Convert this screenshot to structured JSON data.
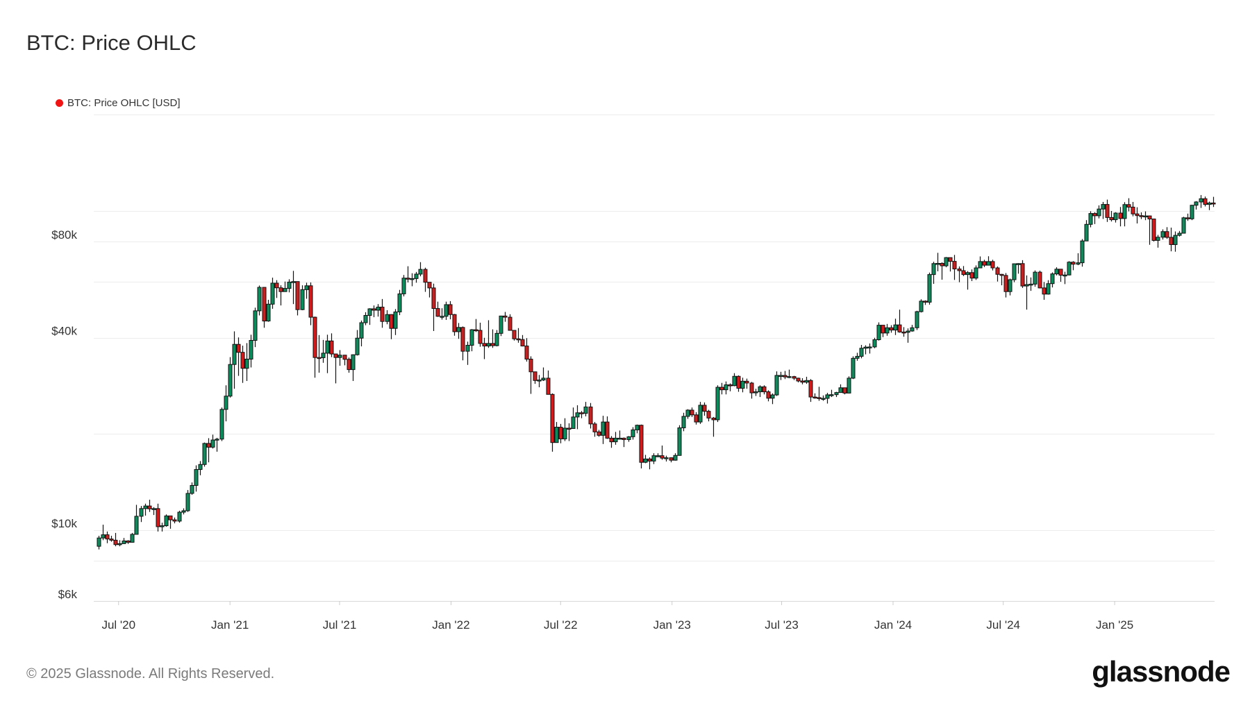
{
  "title": "BTC: Price OHLC",
  "legend": {
    "label": "BTC: Price OHLC [USD]",
    "color": "#f01414"
  },
  "footer": "© 2025 Glassnode. All Rights Reserved.",
  "logo": "glassnode",
  "chart_data": {
    "type": "candlestick",
    "title": "BTC: Price OHLC",
    "series_name": "BTC: Price OHLC [USD]",
    "y_scale": "log",
    "ylim": [
      6000,
      200000
    ],
    "y_ticks": [
      {
        "value": 6000,
        "label": "$6k"
      },
      {
        "value": 10000,
        "label": "$10k"
      },
      {
        "value": 40000,
        "label": "$40k"
      },
      {
        "value": 80000,
        "label": "$80k"
      }
    ],
    "y_gridlines": [
      6000,
      8000,
      10000,
      20000,
      40000,
      60000,
      80000,
      100000,
      200000
    ],
    "xlim": [
      "2020-05-21",
      "2025-06-15"
    ],
    "x_ticks": [
      {
        "date": "2020-07-01",
        "label": "Jul '20"
      },
      {
        "date": "2021-01-01",
        "label": "Jan '21"
      },
      {
        "date": "2021-07-01",
        "label": "Jul '21"
      },
      {
        "date": "2022-01-01",
        "label": "Jan '22"
      },
      {
        "date": "2022-07-01",
        "label": "Jul '22"
      },
      {
        "date": "2023-01-01",
        "label": "Jan '23"
      },
      {
        "date": "2023-07-01",
        "label": "Jul '23"
      },
      {
        "date": "2024-01-01",
        "label": "Jan '24"
      },
      {
        "date": "2024-07-01",
        "label": "Jul '24"
      },
      {
        "date": "2025-01-01",
        "label": "Jan '25"
      }
    ],
    "grid": true,
    "legend_position": "top-left",
    "up_color": "#0c8c5c",
    "down_color": "#d01c1c",
    "interval": "1w",
    "first_week": "2020-05-25",
    "first_open": 8900,
    "close": [
      9450,
      9670,
      9380,
      9300,
      9010,
      9070,
      9250,
      9160,
      9700,
      11050,
      11680,
      11900,
      11660,
      11680,
      10250,
      10320,
      11080,
      10770,
      10670,
      11380,
      11500,
      13030,
      13800,
      15480,
      16050,
      18680,
      18180,
      19150,
      19270,
      23870,
      26270,
      33000,
      38150,
      36020,
      32100,
      34300,
      39260,
      48580,
      57540,
      45140,
      50970,
      59300,
      57350,
      55800,
      57100,
      59770,
      60000,
      49000,
      56600,
      58200,
      46400,
      34700,
      34650,
      35800,
      39100,
      35600,
      34700,
      35300,
      34250,
      31800,
      35400,
      39900,
      44600,
      47000,
      49300,
      48800,
      49900,
      45000,
      47300,
      42800,
      48200,
      54900,
      61500,
      61300,
      61300,
      63300,
      65500,
      59700,
      57300,
      49400,
      46700,
      46700,
      50800,
      47300,
      41800,
      43100,
      36300,
      37900,
      42400,
      42200,
      38400,
      37700,
      38400,
      37800,
      41300,
      46800,
      46400,
      42200,
      39700,
      39500,
      37700,
      34300,
      31300,
      29400,
      29500,
      29900,
      26600,
      18800,
      21000,
      19300,
      20850,
      20800,
      22600,
      23300,
      23200,
      24300,
      21500,
      20300,
      19800,
      21800,
      19400,
      18900,
      19400,
      19400,
      19200,
      19600,
      20600,
      21300,
      16300,
      16700,
      16450,
      17100,
      17100,
      16800,
      16850,
      16550,
      17130,
      20900,
      22700,
      23750,
      22950,
      21800,
      24600,
      23550,
      22430,
      22150,
      28000,
      27500,
      28500,
      28330,
      30300,
      27800,
      29250,
      28870,
      26900,
      27100,
      28100,
      27100,
      25880,
      26500,
      30500,
      30500,
      30170,
      30250,
      29900,
      29300,
      29050,
      29400,
      26100,
      26000,
      25800,
      25850,
      26520,
      26550,
      26960,
      27900,
      26850,
      29900,
      34500,
      35000,
      37100,
      37400,
      37450,
      39450,
      43800,
      41400,
      43000,
      42300,
      43900,
      41700,
      41600,
      42000,
      43000,
      48300,
      52100,
      51700,
      63100,
      68300,
      68400,
      67200,
      71300,
      69400,
      65700,
      64900,
      63100,
      64000,
      61500,
      66200,
      69300,
      67500,
      69300,
      66200,
      63200,
      62700,
      55800,
      60800,
      68200,
      68300,
      58100,
      58700,
      58900,
      64200,
      57300,
      54800,
      59100,
      63400,
      65600,
      62800,
      62900,
      69000,
      68000,
      68700,
      80400,
      90600,
      98000,
      96400,
      101200,
      104600,
      95200,
      93700,
      98300,
      94500,
      104500,
      102600,
      97700,
      96500,
      96100,
      96300,
      94200,
      80700,
      82600,
      86000,
      82500,
      78300,
      83700,
      85000,
      95000,
      94300,
      104000,
      106500,
      109000,
      104600,
      105700,
      105500
    ],
    "high": [
      9600,
      10400,
      9900,
      9600,
      9800,
      9300,
      9450,
      9300,
      9800,
      12000,
      11900,
      12100,
      12450,
      11800,
      12100,
      10550,
      11200,
      11000,
      10950,
      11500,
      11700,
      13350,
      14100,
      15950,
      16450,
      18800,
      19400,
      19900,
      19450,
      24200,
      28400,
      34800,
      41900,
      40100,
      37800,
      38500,
      40900,
      49700,
      58300,
      57500,
      52600,
      61700,
      60600,
      58400,
      60000,
      61000,
      64800,
      57500,
      58400,
      59500,
      59600,
      46600,
      40800,
      39400,
      40900,
      41300,
      35500,
      36600,
      35100,
      34700,
      35500,
      42300,
      45300,
      48100,
      49500,
      50500,
      51000,
      52900,
      48800,
      47400,
      49200,
      56500,
      62900,
      67000,
      63700,
      64300,
      69000,
      66300,
      59300,
      59100,
      51900,
      49500,
      51900,
      52100,
      47500,
      44500,
      43400,
      38900,
      42600,
      45800,
      44600,
      40000,
      45400,
      42500,
      42300,
      46900,
      48200,
      47400,
      41500,
      42900,
      40800,
      39900,
      35000,
      31300,
      30600,
      32300,
      31600,
      26800,
      21800,
      21500,
      22400,
      21600,
      24200,
      24600,
      23600,
      25200,
      25000,
      21800,
      20600,
      22800,
      22700,
      19700,
      20300,
      20500,
      19500,
      19700,
      21000,
      21400,
      21400,
      17200,
      16900,
      17400,
      17400,
      18400,
      17100,
      16900,
      17400,
      21300,
      23300,
      23900,
      24200,
      23400,
      25200,
      25100,
      23800,
      22600,
      28400,
      28900,
      29200,
      28800,
      31000,
      30500,
      30000,
      29800,
      29100,
      27700,
      28400,
      28400,
      27400,
      26800,
      31400,
      31300,
      31500,
      31800,
      30400,
      30000,
      29900,
      30200,
      29700,
      26800,
      28100,
      26400,
      26900,
      27500,
      27100,
      28600,
      27900,
      30300,
      35000,
      35900,
      38000,
      37900,
      38400,
      40000,
      44700,
      43400,
      44200,
      43800,
      45900,
      49000,
      43200,
      42800,
      43900,
      48600,
      52800,
      52400,
      64000,
      69200,
      73800,
      68900,
      71600,
      71300,
      72700,
      66900,
      67100,
      64700,
      65500,
      67400,
      71900,
      70200,
      72000,
      70200,
      66900,
      63400,
      63800,
      61300,
      68300,
      68500,
      70000,
      62700,
      61800,
      65000,
      64900,
      59800,
      60600,
      64100,
      66500,
      65700,
      64400,
      69500,
      69500,
      73600,
      81500,
      93400,
      99600,
      98900,
      103900,
      106500,
      108300,
      99800,
      98900,
      102700,
      106300,
      109400,
      106500,
      102500,
      98800,
      99500,
      96500,
      94300,
      84000,
      87400,
      88800,
      88500,
      86100,
      86400,
      95700,
      97900,
      104300,
      107100,
      111900,
      110700,
      106800,
      110500
    ],
    "low": [
      8700,
      9300,
      9100,
      9200,
      8900,
      8900,
      9050,
      9050,
      9150,
      9700,
      10600,
      11100,
      11400,
      11150,
      9900,
      9900,
      10250,
      10100,
      10500,
      10550,
      11200,
      11400,
      12900,
      13200,
      14850,
      15800,
      16300,
      18000,
      17600,
      19000,
      21900,
      26000,
      27700,
      30400,
      28900,
      29300,
      32300,
      37400,
      47000,
      43000,
      44900,
      49300,
      53300,
      50500,
      55800,
      55500,
      51000,
      47000,
      48800,
      53000,
      43800,
      30000,
      31100,
      33400,
      31000,
      34800,
      28800,
      32700,
      32800,
      31100,
      29300,
      35200,
      37600,
      43800,
      43900,
      46400,
      46600,
      43000,
      44100,
      39600,
      40800,
      47100,
      53900,
      59600,
      58000,
      59500,
      62300,
      55700,
      53500,
      42000,
      46500,
      45600,
      45500,
      45700,
      40600,
      39700,
      34000,
      32900,
      36300,
      41700,
      37500,
      34300,
      37200,
      37200,
      37600,
      40500,
      44900,
      42100,
      39200,
      38600,
      37600,
      33700,
      26700,
      28700,
      28000,
      29300,
      26600,
      17600,
      19600,
      18700,
      19000,
      19000,
      20800,
      20700,
      22400,
      22700,
      20800,
      19600,
      19600,
      18600,
      19300,
      18100,
      18500,
      19200,
      18200,
      18900,
      19200,
      20100,
      15600,
      16200,
      15500,
      16100,
      16900,
      16600,
      16400,
      16300,
      16500,
      17100,
      20400,
      22300,
      22600,
      21400,
      21500,
      22800,
      21900,
      19600,
      21800,
      26600,
      26600,
      27200,
      28200,
      27100,
      27000,
      27700,
      25800,
      26300,
      26100,
      26600,
      25300,
      24800,
      26300,
      29500,
      29700,
      29900,
      29500,
      29000,
      28600,
      28700,
      25200,
      25800,
      25400,
      25400,
      24900,
      26100,
      26100,
      27200,
      26600,
      26800,
      29700,
      33900,
      34500,
      35500,
      35700,
      37100,
      39200,
      40200,
      40600,
      41500,
      40800,
      41500,
      40300,
      38600,
      41800,
      42300,
      48000,
      50700,
      50800,
      59000,
      64600,
      60800,
      66500,
      64500,
      60700,
      59700,
      62400,
      56600,
      60200,
      60700,
      66600,
      66600,
      67600,
      65000,
      60000,
      58400,
      53500,
      54300,
      59700,
      63500,
      57300,
      49000,
      56100,
      57800,
      57100,
      52600,
      54600,
      57500,
      62700,
      59900,
      58900,
      62700,
      65100,
      67500,
      66800,
      80300,
      88700,
      90800,
      94600,
      94200,
      92200,
      92500,
      91800,
      89300,
      89300,
      99500,
      96000,
      91200,
      94100,
      93400,
      78200,
      80100,
      76600,
      81200,
      81600,
      74600,
      74400,
      83000,
      85100,
      92900,
      93400,
      100800,
      102000,
      103100,
      100400,
      102700
    ]
  }
}
